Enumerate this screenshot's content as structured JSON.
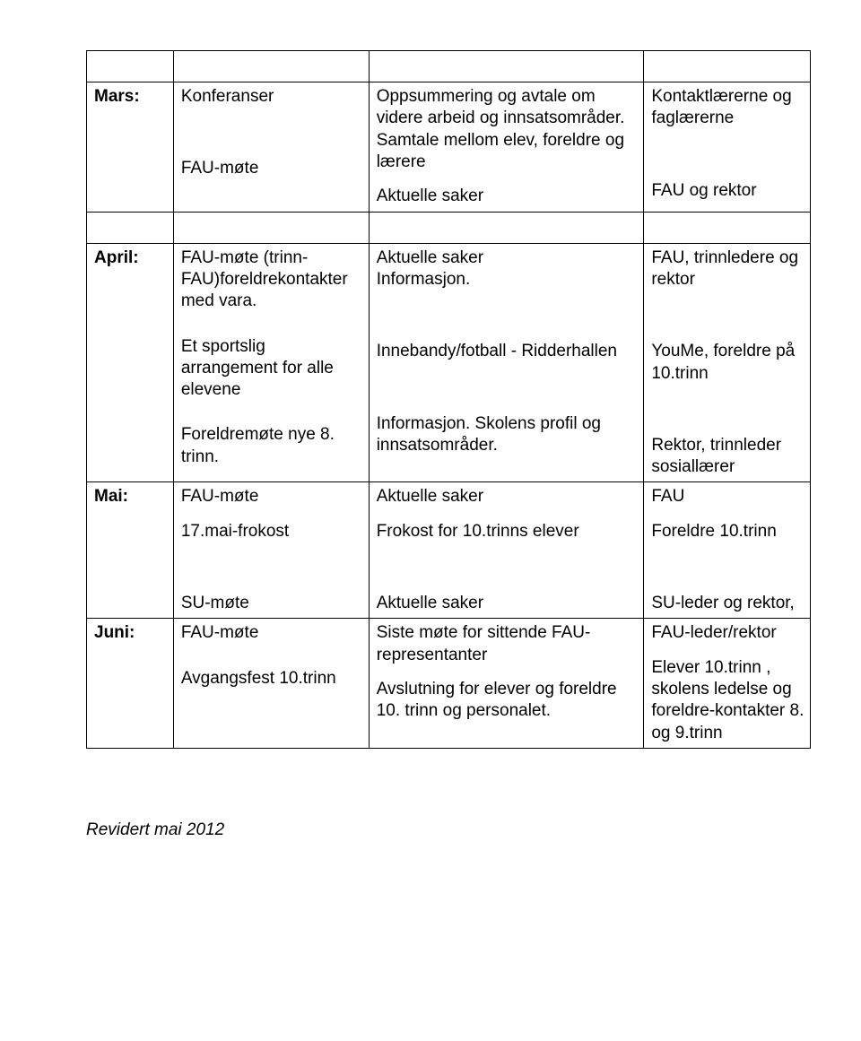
{
  "rows": {
    "mars": {
      "month": "Mars:",
      "c2a": "Konferanser",
      "c2b": "FAU-møte",
      "c3a": "Oppsummering og avtale om videre arbeid og innsatsområder. Samtale mellom elev, foreldre og lærere",
      "c3b": "Aktuelle saker",
      "c4a": "Kontaktlærerne og faglærerne",
      "c4b": "FAU og rektor"
    },
    "april": {
      "month": "April:",
      "c2a": "FAU-møte (trinn-FAU)foreldrekontakter med vara.",
      "c2b": "Et sportslig arrangement for alle elevene",
      "c2c": "Foreldremøte nye 8. trinn.",
      "c3a": "Aktuelle saker",
      "c3a2": "Informasjon.",
      "c3b": "Innebandy/fotball - Ridderhallen",
      "c3c": "Informasjon. Skolens profil og innsatsområder.",
      "c4a": "FAU, trinnledere og rektor",
      "c4b": "YouMe, foreldre på 10.trinn",
      "c4c": "Rektor, trinnleder sosiallærer"
    },
    "mai": {
      "month": "Mai:",
      "c2a": "FAU-møte",
      "c2b": "17.mai-frokost",
      "c2c": "SU-møte",
      "c3a": "Aktuelle saker",
      "c3b": "Frokost for 10.trinns elever",
      "c3c": "Aktuelle saker",
      "c4a": "FAU",
      "c4b": "Foreldre 10.trinn",
      "c4c": "SU-leder og rektor,"
    },
    "juni": {
      "month": "Juni:",
      "c2a": "FAU-møte",
      "c2b": "Avgangsfest 10.trinn",
      "c3a": "Siste møte for sittende FAU-representanter",
      "c3b": "Avslutning for elever og foreldre 10. trinn og personalet.",
      "c4a": "FAU-leder/rektor",
      "c4b": "Elever 10.trinn , skolens ledelse og foreldre-kontakter 8. og 9.trinn"
    }
  },
  "footer": "Revidert mai 2012"
}
